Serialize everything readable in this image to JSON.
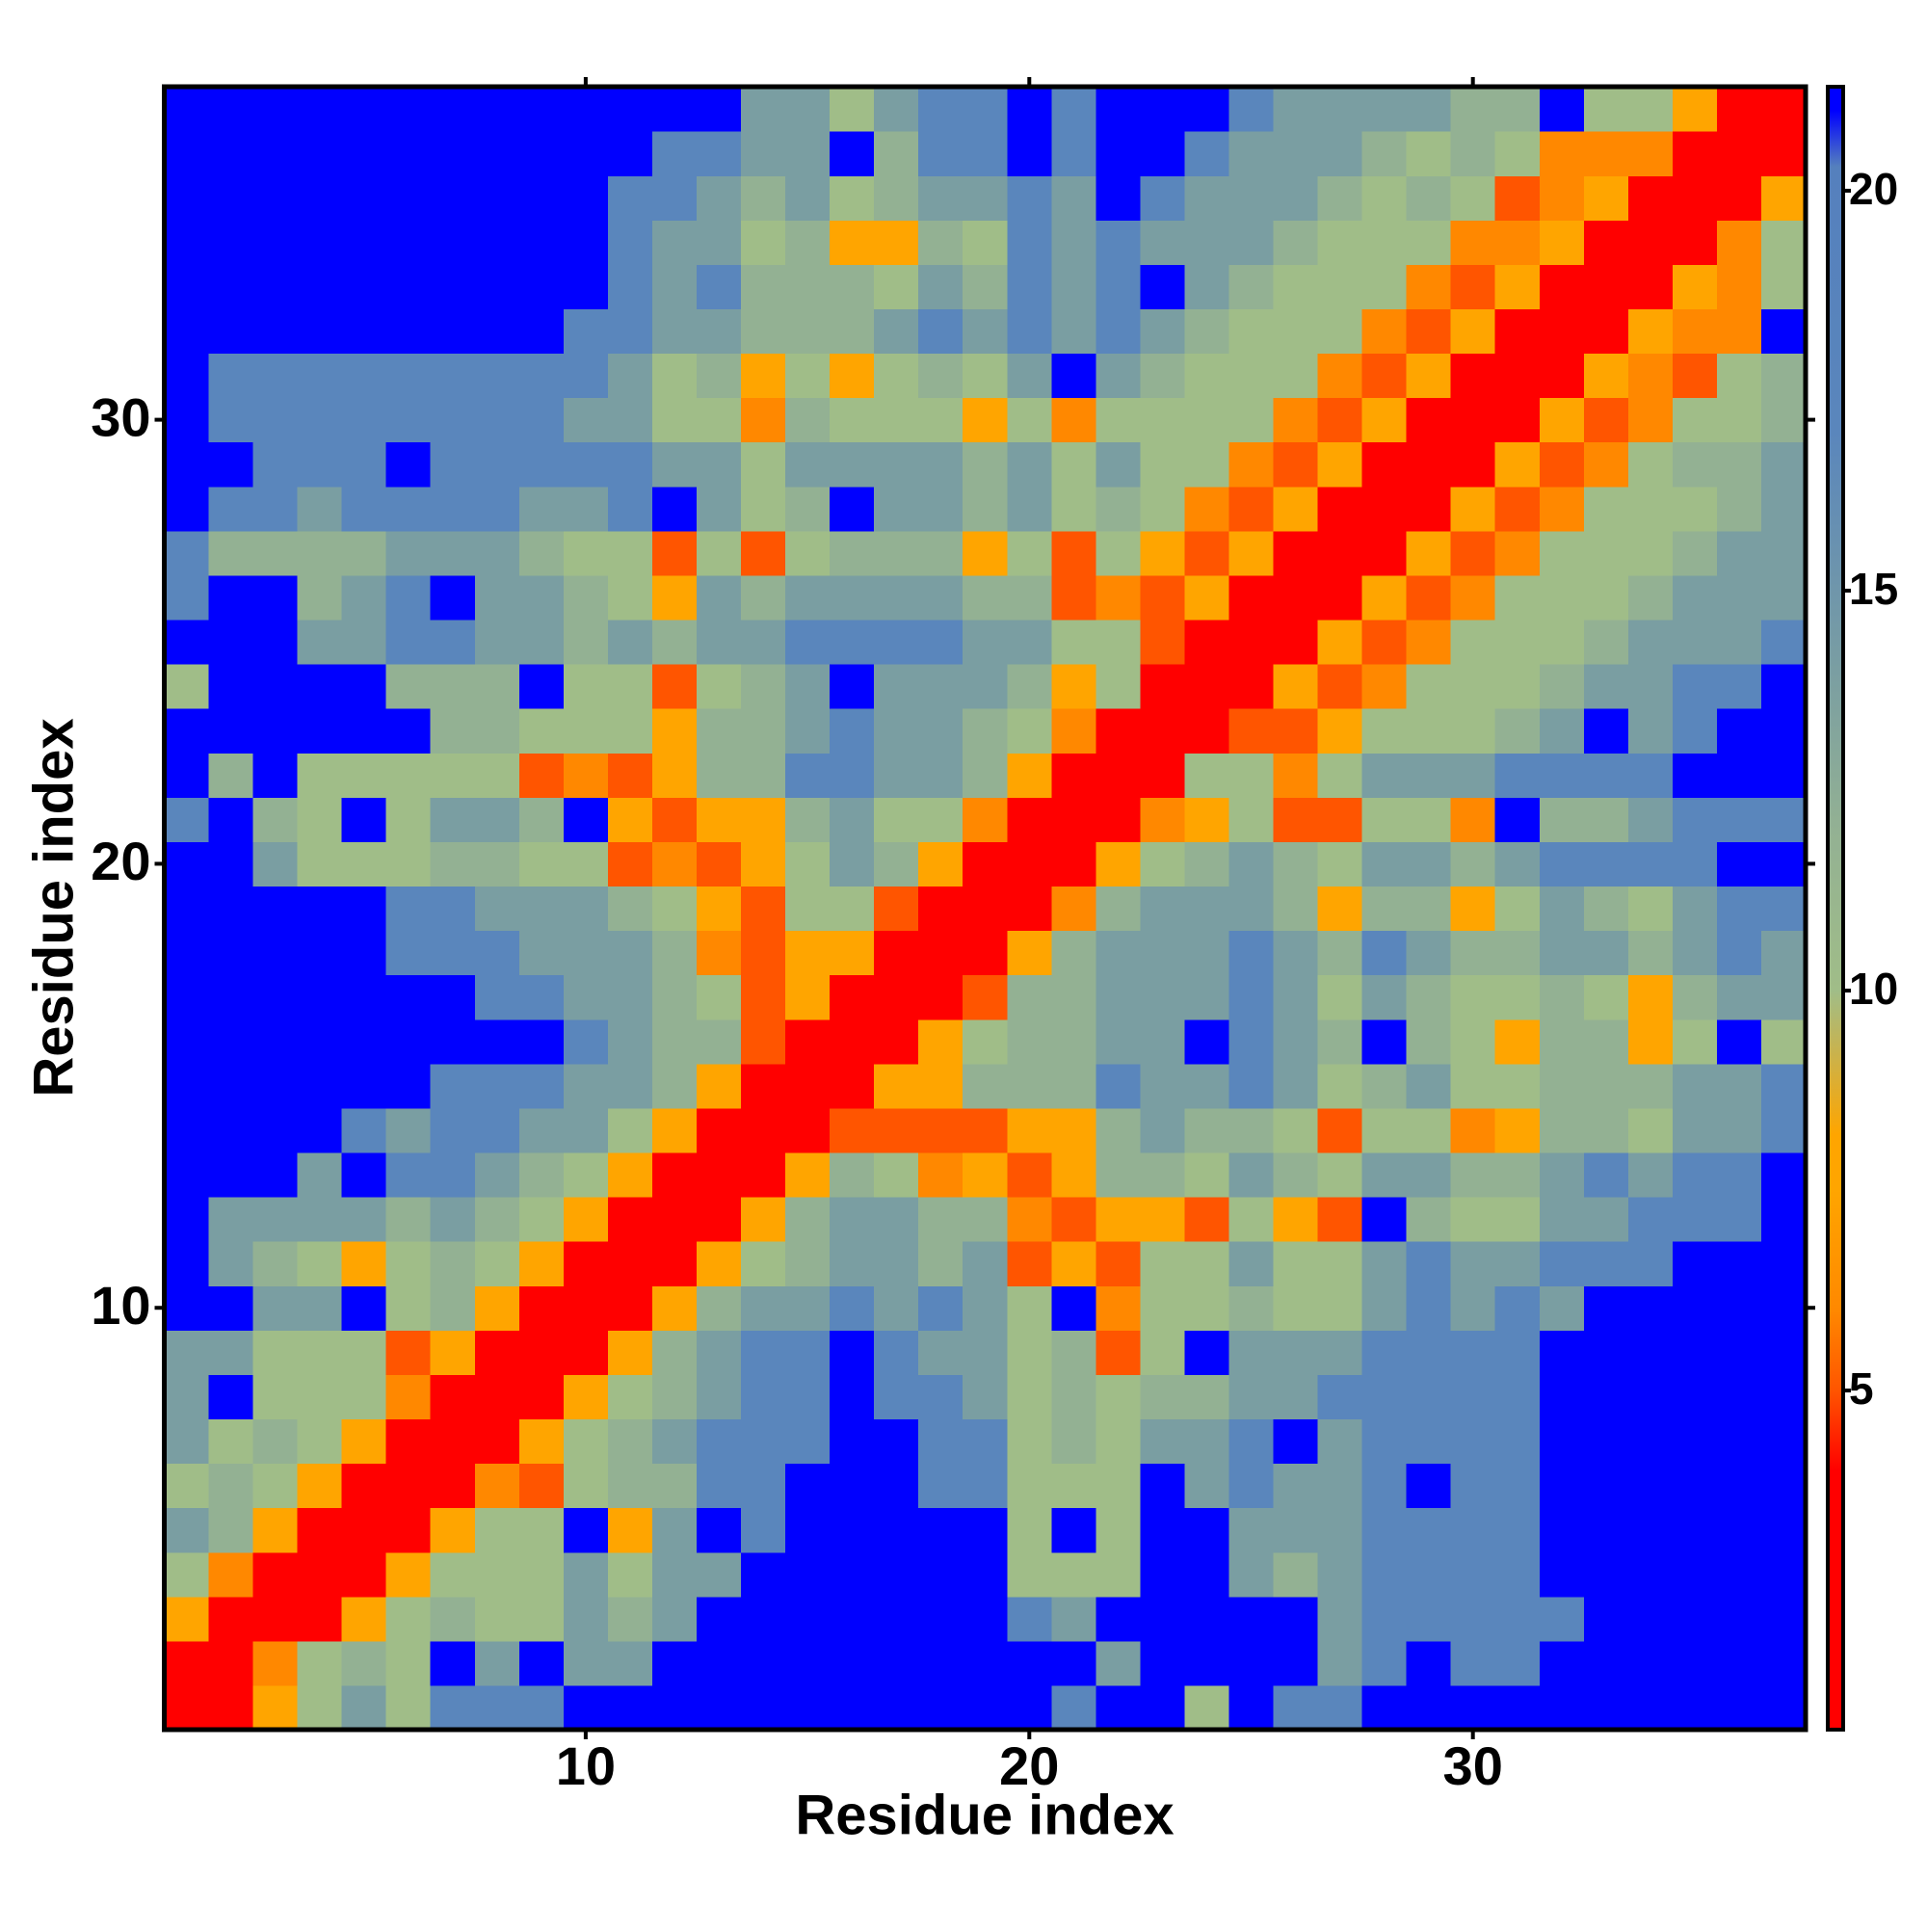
{
  "chart_data": {
    "type": "heatmap",
    "x_label": "Residue index",
    "y_label": "Residue index",
    "x": [
      1,
      2,
      3,
      4,
      5,
      6,
      7,
      8,
      9,
      10,
      11,
      12,
      13,
      14,
      15,
      16,
      17,
      18,
      19,
      20,
      21,
      22,
      23,
      24,
      25,
      26,
      27,
      28,
      29,
      30,
      31,
      32,
      33,
      34,
      35,
      36,
      37
    ],
    "y": [
      1,
      2,
      3,
      4,
      5,
      6,
      7,
      8,
      9,
      10,
      11,
      12,
      13,
      14,
      15,
      16,
      17,
      18,
      19,
      20,
      21,
      22,
      23,
      24,
      25,
      26,
      27,
      28,
      29,
      30,
      31,
      32,
      33,
      34,
      35,
      36,
      37
    ],
    "xlim": [
      0.5,
      37.5
    ],
    "ylim": [
      0.5,
      37.5
    ],
    "xticks": [
      10,
      20,
      30
    ],
    "yticks": [
      10,
      20,
      30
    ],
    "colorbar_lim": [
      0.76,
      21.3
    ],
    "colorbar_ticks": [
      5,
      10,
      15,
      20
    ],
    "colorscale": [
      [
        0.76,
        "#ff0000"
      ],
      [
        4,
        "#ff0000"
      ],
      [
        5,
        "#ff5500"
      ],
      [
        6,
        "#ff8800"
      ],
      [
        7.5,
        "#ffa500"
      ],
      [
        8.2,
        "#ffa500"
      ],
      [
        10,
        "#a0bd88"
      ],
      [
        12,
        "#93b193"
      ],
      [
        14,
        "#7a9ea2"
      ],
      [
        17,
        "#5a86bc"
      ],
      [
        20.3,
        "#5580bd"
      ],
      [
        21,
        "#0000ff"
      ],
      [
        21.3,
        "#0000ff"
      ]
    ],
    "z": [
      [
        2,
        2,
        7.5,
        10,
        14,
        10,
        17,
        17,
        17,
        21,
        21,
        21,
        21,
        21,
        21,
        21,
        21,
        21,
        21,
        21,
        17,
        21,
        21,
        10,
        21,
        17,
        17,
        21,
        21,
        21,
        21,
        21,
        21,
        21,
        21,
        21,
        21
      ],
      [
        2,
        2,
        6,
        10,
        12,
        10,
        21,
        14,
        21,
        14,
        14,
        21,
        21,
        21,
        21,
        21,
        21,
        21,
        21,
        21,
        21,
        14,
        21,
        21,
        21,
        21,
        14,
        17,
        21,
        17,
        17,
        21,
        21,
        21,
        21,
        21,
        21
      ],
      [
        7.5,
        2,
        2,
        2,
        7.5,
        10,
        12,
        10,
        10,
        14,
        12,
        14,
        21,
        21,
        21,
        21,
        21,
        21,
        21,
        17,
        14,
        21,
        21,
        21,
        21,
        21,
        14,
        17,
        17,
        17,
        17,
        17,
        21,
        21,
        21,
        21,
        21
      ],
      [
        10,
        6,
        2,
        2,
        2,
        7.5,
        10,
        10,
        10,
        14,
        10,
        14,
        14,
        21,
        21,
        21,
        21,
        21,
        21,
        10,
        10,
        10,
        21,
        21,
        14,
        12,
        14,
        17,
        17,
        17,
        17,
        21,
        21,
        21,
        21,
        21,
        21
      ],
      [
        14,
        12,
        7.5,
        2,
        2,
        2,
        7.5,
        10,
        10,
        21,
        7.5,
        14,
        21,
        17,
        21,
        21,
        21,
        21,
        21,
        10,
        21,
        10,
        21,
        21,
        14,
        14,
        14,
        17,
        17,
        17,
        17,
        21,
        21,
        21,
        21,
        21,
        21
      ],
      [
        10,
        12,
        10,
        7.5,
        2,
        2,
        2,
        6,
        5,
        10,
        12,
        12,
        17,
        17,
        21,
        21,
        21,
        17,
        17,
        10,
        10,
        10,
        21,
        14,
        17,
        14,
        14,
        17,
        21,
        17,
        17,
        21,
        21,
        21,
        21,
        21,
        21
      ],
      [
        14,
        10,
        12,
        10,
        7.5,
        2,
        2,
        2,
        7.5,
        10,
        12,
        14,
        17,
        17,
        17,
        21,
        21,
        17,
        17,
        10,
        12,
        10,
        14,
        14,
        17,
        21,
        14,
        17,
        17,
        17,
        17,
        21,
        21,
        21,
        21,
        21,
        21
      ],
      [
        14,
        21,
        10,
        10,
        10,
        6,
        2,
        2,
        2,
        7.5,
        10,
        12,
        14,
        17,
        17,
        21,
        17,
        17,
        14,
        10,
        12,
        10,
        12,
        12,
        14,
        14,
        17,
        17,
        17,
        17,
        17,
        21,
        21,
        21,
        21,
        21,
        21
      ],
      [
        14,
        14,
        10,
        10,
        10,
        5,
        7.5,
        2,
        2,
        2,
        7.5,
        12,
        14,
        17,
        17,
        21,
        17,
        14,
        14,
        10,
        12,
        5,
        10,
        21,
        14,
        14,
        14,
        17,
        17,
        17,
        17,
        21,
        21,
        21,
        21,
        21,
        21
      ],
      [
        21,
        21,
        14,
        14,
        21,
        10,
        12,
        7.5,
        2,
        2,
        2,
        7.5,
        12,
        14,
        14,
        17,
        14,
        17,
        14,
        10,
        21,
        6,
        10,
        10,
        12,
        10,
        10,
        14,
        17,
        14,
        17,
        14,
        21,
        21,
        21,
        21,
        21
      ],
      [
        21,
        14,
        12,
        10,
        7.5,
        10,
        12,
        10,
        7.5,
        2,
        2,
        2,
        7.5,
        10,
        12,
        14,
        14,
        12,
        14,
        5,
        7.5,
        5,
        10,
        10,
        14,
        10,
        10,
        14,
        17,
        14,
        14,
        17,
        17,
        17,
        21,
        21,
        21
      ],
      [
        21,
        14,
        14,
        14,
        14,
        12,
        14,
        12,
        10,
        7.5,
        2,
        2,
        2,
        7.5,
        12,
        14,
        14,
        12,
        12,
        6,
        5,
        7.5,
        7.5,
        5,
        10,
        7.5,
        5,
        21,
        12,
        10,
        10,
        14,
        14,
        17,
        17,
        17,
        21
      ],
      [
        21,
        21,
        21,
        14,
        21,
        17,
        17,
        14,
        12,
        10,
        7.5,
        2,
        2,
        2,
        7.5,
        12,
        10,
        6,
        7.5,
        5,
        7.5,
        12,
        12,
        10,
        14,
        12,
        10,
        14,
        14,
        12,
        12,
        14,
        17,
        14,
        17,
        17,
        21
      ],
      [
        21,
        21,
        21,
        21,
        17,
        14,
        17,
        17,
        14,
        14,
        10,
        7.5,
        2,
        2,
        2,
        5,
        5,
        5,
        5,
        7.5,
        7.5,
        12,
        14,
        12,
        12,
        10,
        5,
        10,
        10,
        6,
        7.5,
        12,
        12,
        10,
        14,
        14,
        17
      ],
      [
        21,
        21,
        21,
        21,
        21,
        21,
        17,
        17,
        17,
        14,
        14,
        12,
        7.5,
        2,
        2,
        2,
        7.5,
        7.5,
        12,
        12,
        12,
        17,
        14,
        14,
        17,
        14,
        10,
        12,
        14,
        10,
        10,
        12,
        12,
        12,
        14,
        14,
        17
      ],
      [
        21,
        21,
        21,
        21,
        21,
        21,
        21,
        21,
        21,
        17,
        14,
        12,
        12,
        5,
        2,
        2,
        2,
        7.5,
        10,
        12,
        12,
        14,
        14,
        21,
        17,
        14,
        12,
        21,
        12,
        10,
        7.5,
        12,
        12,
        7.5,
        10,
        21,
        10
      ],
      [
        21,
        21,
        21,
        21,
        21,
        21,
        21,
        17,
        17,
        14,
        14,
        12,
        10,
        5,
        7.5,
        2,
        2,
        2,
        5,
        12,
        12,
        14,
        14,
        14,
        17,
        14,
        10,
        14,
        12,
        10,
        10,
        12,
        10,
        7.5,
        12,
        14,
        14
      ],
      [
        21,
        21,
        21,
        21,
        21,
        17,
        17,
        17,
        14,
        14,
        14,
        12,
        6,
        5,
        7.5,
        7.5,
        2,
        2,
        2,
        7.5,
        12,
        14,
        14,
        14,
        17,
        14,
        12,
        17,
        14,
        12,
        12,
        14,
        14,
        12,
        14,
        17,
        14
      ],
      [
        21,
        21,
        21,
        21,
        21,
        17,
        17,
        14,
        14,
        14,
        12,
        10,
        7.5,
        5,
        10,
        10,
        5,
        2,
        2,
        2,
        6,
        12,
        14,
        14,
        14,
        12,
        7.5,
        12,
        12,
        7.5,
        10,
        14,
        12,
        10,
        14,
        17,
        17
      ],
      [
        21,
        21,
        14,
        10,
        10,
        10,
        12,
        12,
        10,
        10,
        5,
        6,
        5,
        7.5,
        10,
        14,
        12,
        7.5,
        2,
        2,
        2,
        7.5,
        10,
        12,
        14,
        12,
        10,
        14,
        14,
        12,
        14,
        17,
        17,
        17,
        17,
        21,
        21
      ],
      [
        17,
        21,
        12,
        10,
        21,
        10,
        14,
        14,
        12,
        21,
        7.5,
        5,
        7.5,
        7.5,
        12,
        14,
        10,
        10,
        6,
        2,
        2,
        2,
        6,
        7.5,
        10,
        5,
        5,
        10,
        10,
        6,
        21,
        12,
        12,
        14,
        17,
        17,
        17
      ],
      [
        21,
        12,
        21,
        10,
        10,
        10,
        10,
        10,
        5,
        6,
        5,
        7.5,
        12,
        12,
        17,
        17,
        14,
        14,
        12,
        7.5,
        2,
        2,
        2,
        10,
        10,
        6,
        10,
        14,
        14,
        14,
        17,
        17,
        17,
        17,
        21,
        21,
        21
      ],
      [
        21,
        21,
        21,
        21,
        21,
        21,
        12,
        12,
        10,
        10,
        10,
        7.5,
        12,
        12,
        14,
        17,
        14,
        14,
        12,
        10,
        6,
        2,
        2,
        2,
        5,
        5,
        7.5,
        10,
        10,
        10,
        12,
        14,
        21,
        14,
        17,
        21,
        21
      ],
      [
        10,
        21,
        21,
        21,
        21,
        12,
        12,
        12,
        21,
        10,
        10,
        5,
        10,
        12,
        14,
        21,
        14,
        14,
        14,
        12,
        7.5,
        10,
        2,
        2,
        2,
        7.5,
        5,
        6,
        10,
        10,
        10,
        12,
        14,
        14,
        17,
        17,
        21
      ],
      [
        21,
        21,
        21,
        14,
        14,
        17,
        17,
        14,
        14,
        12,
        14,
        12,
        14,
        14,
        17,
        17,
        17,
        17,
        14,
        14,
        10,
        10,
        5,
        2,
        2,
        2,
        7.5,
        5,
        6,
        10,
        10,
        10,
        12,
        14,
        14,
        14,
        17
      ],
      [
        17,
        21,
        21,
        12,
        14,
        17,
        21,
        14,
        14,
        12,
        10,
        7.5,
        14,
        12,
        14,
        14,
        14,
        14,
        12,
        12,
        5,
        6,
        5,
        7.5,
        2,
        2,
        2,
        7.5,
        5,
        6,
        10,
        10,
        10,
        12,
        14,
        14,
        14
      ],
      [
        17,
        12,
        12,
        12,
        12,
        14,
        14,
        14,
        12,
        10,
        10,
        5,
        10,
        5,
        10,
        12,
        12,
        12,
        7.5,
        10,
        5,
        10,
        7.5,
        5,
        7.5,
        2,
        2,
        2,
        7.5,
        5,
        6,
        10,
        10,
        10,
        12,
        14,
        14
      ],
      [
        21,
        17,
        17,
        14,
        17,
        17,
        17,
        17,
        14,
        14,
        17,
        21,
        14,
        10,
        12,
        21,
        14,
        14,
        12,
        14,
        10,
        12,
        10,
        6,
        5,
        7.5,
        2,
        2,
        2,
        7.5,
        5,
        6,
        10,
        10,
        10,
        12,
        14
      ],
      [
        21,
        21,
        17,
        17,
        17,
        21,
        17,
        17,
        17,
        17,
        17,
        14,
        14,
        10,
        14,
        14,
        14,
        14,
        12,
        14,
        10,
        14,
        10,
        10,
        6,
        5,
        7.5,
        2,
        2,
        2,
        7.5,
        5,
        6,
        10,
        12,
        12,
        14
      ],
      [
        21,
        17,
        17,
        17,
        17,
        17,
        17,
        17,
        17,
        14,
        14,
        10,
        10,
        6,
        12,
        10,
        10,
        10,
        7.5,
        10,
        6,
        10,
        10,
        10,
        10,
        6,
        5,
        7.5,
        2,
        2,
        2,
        7.5,
        5,
        6,
        10,
        10,
        12
      ],
      [
        21,
        17,
        17,
        17,
        17,
        17,
        17,
        17,
        17,
        17,
        14,
        10,
        12,
        7.5,
        10,
        7.5,
        10,
        12,
        10,
        14,
        21,
        14,
        12,
        10,
        10,
        10,
        6,
        5,
        7.5,
        2,
        2,
        2,
        7.5,
        6,
        5,
        10,
        12
      ],
      [
        21,
        21,
        21,
        21,
        21,
        21,
        21,
        21,
        21,
        17,
        17,
        14,
        14,
        12,
        12,
        12,
        14,
        17,
        14,
        17,
        14,
        17,
        14,
        12,
        10,
        10,
        10,
        6,
        5,
        7.5,
        2,
        2,
        2,
        7.5,
        6,
        6,
        21
      ],
      [
        21,
        21,
        21,
        21,
        21,
        21,
        21,
        21,
        21,
        21,
        17,
        14,
        17,
        12,
        12,
        12,
        10,
        14,
        12,
        17,
        14,
        17,
        21,
        14,
        12,
        10,
        10,
        10,
        6,
        5,
        7.5,
        2,
        2,
        2,
        7.5,
        6,
        10
      ],
      [
        21,
        21,
        21,
        21,
        21,
        21,
        21,
        21,
        21,
        21,
        17,
        14,
        14,
        10,
        12,
        7.5,
        7.5,
        12,
        10,
        17,
        14,
        17,
        14,
        14,
        14,
        12,
        10,
        10,
        10,
        6,
        6,
        7.5,
        2,
        2,
        2,
        6,
        10
      ],
      [
        21,
        21,
        21,
        21,
        21,
        21,
        21,
        21,
        21,
        21,
        17,
        17,
        14,
        12,
        14,
        10,
        12,
        14,
        14,
        17,
        14,
        21,
        17,
        14,
        14,
        14,
        12,
        10,
        12,
        10,
        5,
        6,
        7.5,
        2,
        2,
        2,
        7.5
      ],
      [
        21,
        21,
        21,
        21,
        21,
        21,
        21,
        21,
        21,
        21,
        21,
        17,
        17,
        14,
        14,
        21,
        12,
        17,
        17,
        21,
        17,
        21,
        21,
        17,
        14,
        14,
        14,
        12,
        10,
        12,
        10,
        6,
        6,
        6,
        2,
        2,
        2
      ],
      [
        21,
        21,
        21,
        21,
        21,
        21,
        21,
        21,
        21,
        21,
        21,
        21,
        21,
        14,
        14,
        10,
        14,
        17,
        17,
        21,
        17,
        21,
        21,
        21,
        17,
        14,
        14,
        14,
        14,
        12,
        12,
        21,
        10,
        10,
        7.5,
        2,
        2
      ]
    ]
  }
}
